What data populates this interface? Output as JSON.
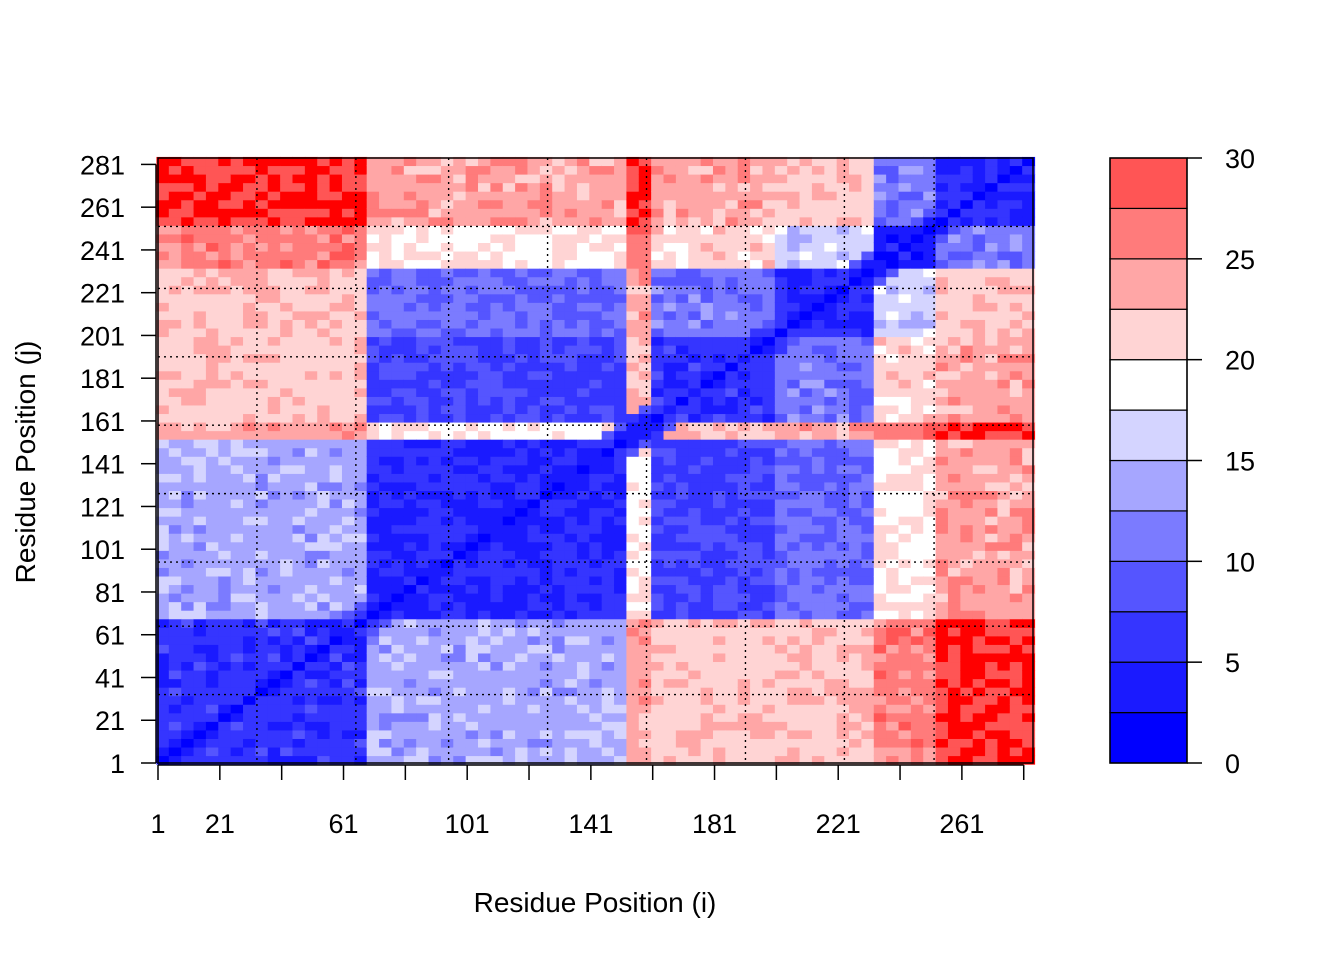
{
  "chart_data": {
    "type": "heatmap",
    "title": "",
    "xlabel": "Residue Position (i)",
    "ylabel": "Residue Position (j)",
    "xlim": [
      1,
      284
    ],
    "ylim": [
      1,
      284
    ],
    "x_ticks": [
      1,
      21,
      61,
      101,
      141,
      181,
      221,
      261
    ],
    "y_ticks": [
      1,
      21,
      41,
      61,
      81,
      101,
      121,
      141,
      161,
      181,
      201,
      221,
      241,
      261,
      281
    ],
    "grid": true,
    "grid_lines": [
      33,
      65,
      95,
      127,
      159,
      191,
      223,
      252
    ],
    "colorbar": {
      "min": 0,
      "max": 30,
      "ticks": [
        0,
        5,
        10,
        15,
        20,
        25,
        30
      ],
      "levels": [
        0,
        2.5,
        5,
        7.5,
        10,
        12.5,
        15,
        17.5,
        20,
        22.5,
        25,
        27.5,
        30
      ],
      "colors": [
        "#0000FF",
        "#1A1AFF",
        "#3535FF",
        "#5555FF",
        "#7B7BFF",
        "#A6A6FF",
        "#D4D4FF",
        "#FFFFFF",
        "#FFD4D4",
        "#FFA6A6",
        "#FF7B7B",
        "#FF5555",
        "#FF3535",
        "#FF1A1A",
        "#FF0000"
      ],
      "low_color": "#0000FF",
      "mid_color": "#FFFFFF",
      "high_color": "#FF0000"
    },
    "domains": [
      {
        "start": 1,
        "end": 65
      },
      {
        "start": 66,
        "end": 150
      },
      {
        "start": 151,
        "end": 160
      },
      {
        "start": 161,
        "end": 200
      },
      {
        "start": 201,
        "end": 230
      },
      {
        "start": 231,
        "end": 250
      },
      {
        "start": 251,
        "end": 284
      }
    ]
  }
}
